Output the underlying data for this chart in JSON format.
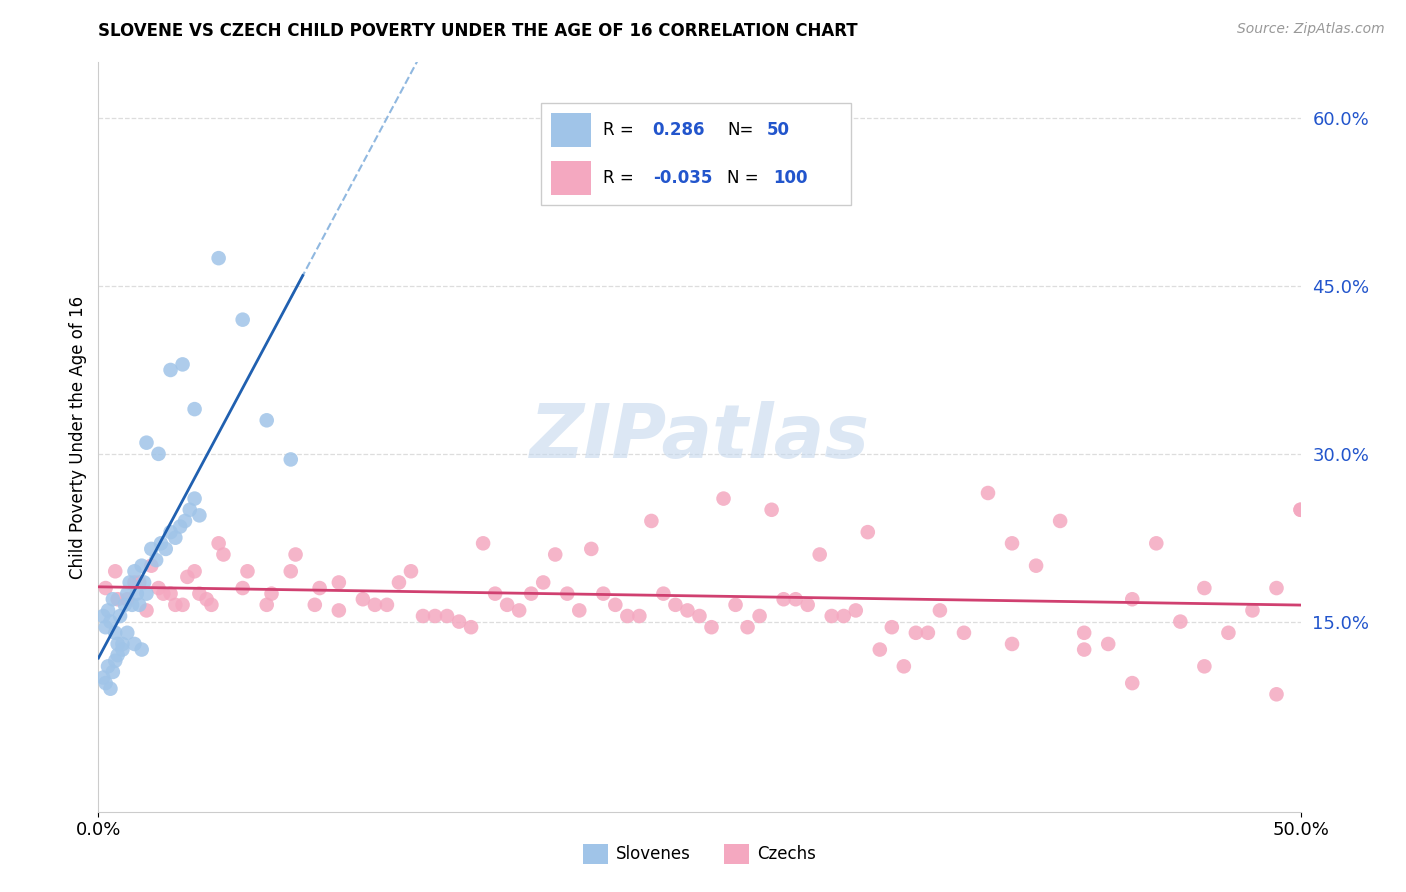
{
  "title": "SLOVENE VS CZECH CHILD POVERTY UNDER THE AGE OF 16 CORRELATION CHART",
  "source": "Source: ZipAtlas.com",
  "ylabel": "Child Poverty Under the Age of 16",
  "xlim": [
    0.0,
    0.5
  ],
  "ylim": [
    -0.02,
    0.65
  ],
  "yticks": [
    0.15,
    0.3,
    0.45,
    0.6
  ],
  "ytick_labels": [
    "15.0%",
    "30.0%",
    "45.0%",
    "60.0%"
  ],
  "xticks": [
    0.0,
    0.5
  ],
  "xtick_labels": [
    "0.0%",
    "50.0%"
  ],
  "R_slovene": 0.286,
  "N_slovene": 50,
  "R_czech": -0.035,
  "N_czech": 100,
  "slovene_color": "#A0C4E8",
  "czech_color": "#F4A8C0",
  "slovene_line_color": "#2060B0",
  "czech_line_color": "#D04070",
  "dash_line_color": "#90B8E0",
  "grid_color": "#DDDDDD",
  "watermark": "ZIPatlas",
  "watermark_color": "#C5D8EE",
  "background_color": "#FFFFFF",
  "legend_value_color": "#2255CC",
  "slovene_x": [
    0.002,
    0.003,
    0.004,
    0.005,
    0.006,
    0.007,
    0.008,
    0.009,
    0.01,
    0.011,
    0.012,
    0.013,
    0.014,
    0.015,
    0.016,
    0.017,
    0.018,
    0.019,
    0.02,
    0.022,
    0.024,
    0.026,
    0.028,
    0.03,
    0.032,
    0.034,
    0.036,
    0.038,
    0.04,
    0.042,
    0.002,
    0.003,
    0.004,
    0.005,
    0.006,
    0.007,
    0.008,
    0.01,
    0.012,
    0.015,
    0.018,
    0.02,
    0.025,
    0.03,
    0.035,
    0.04,
    0.05,
    0.06,
    0.07,
    0.08
  ],
  "slovene_y": [
    0.155,
    0.145,
    0.16,
    0.15,
    0.17,
    0.14,
    0.13,
    0.155,
    0.125,
    0.165,
    0.175,
    0.185,
    0.165,
    0.195,
    0.175,
    0.165,
    0.2,
    0.185,
    0.175,
    0.215,
    0.205,
    0.22,
    0.215,
    0.23,
    0.225,
    0.235,
    0.24,
    0.25,
    0.26,
    0.245,
    0.1,
    0.095,
    0.11,
    0.09,
    0.105,
    0.115,
    0.12,
    0.13,
    0.14,
    0.13,
    0.125,
    0.31,
    0.3,
    0.375,
    0.38,
    0.34,
    0.475,
    0.42,
    0.33,
    0.295
  ],
  "czech_x": [
    0.003,
    0.007,
    0.012,
    0.017,
    0.022,
    0.027,
    0.032,
    0.037,
    0.042,
    0.047,
    0.052,
    0.062,
    0.072,
    0.082,
    0.092,
    0.1,
    0.11,
    0.12,
    0.13,
    0.14,
    0.15,
    0.16,
    0.17,
    0.18,
    0.19,
    0.2,
    0.21,
    0.22,
    0.23,
    0.24,
    0.25,
    0.26,
    0.27,
    0.28,
    0.29,
    0.3,
    0.31,
    0.32,
    0.33,
    0.34,
    0.35,
    0.36,
    0.37,
    0.38,
    0.39,
    0.4,
    0.41,
    0.42,
    0.43,
    0.44,
    0.45,
    0.46,
    0.47,
    0.48,
    0.49,
    0.5,
    0.008,
    0.015,
    0.02,
    0.025,
    0.03,
    0.035,
    0.04,
    0.045,
    0.05,
    0.06,
    0.07,
    0.08,
    0.09,
    0.1,
    0.115,
    0.125,
    0.135,
    0.145,
    0.155,
    0.165,
    0.175,
    0.185,
    0.195,
    0.205,
    0.215,
    0.225,
    0.235,
    0.245,
    0.255,
    0.265,
    0.275,
    0.285,
    0.295,
    0.305,
    0.315,
    0.325,
    0.335,
    0.345,
    0.38,
    0.41,
    0.43,
    0.46,
    0.49,
    0.5
  ],
  "czech_y": [
    0.18,
    0.195,
    0.17,
    0.185,
    0.2,
    0.175,
    0.165,
    0.19,
    0.175,
    0.165,
    0.21,
    0.195,
    0.175,
    0.21,
    0.18,
    0.185,
    0.17,
    0.165,
    0.195,
    0.155,
    0.15,
    0.22,
    0.165,
    0.175,
    0.21,
    0.16,
    0.175,
    0.155,
    0.24,
    0.165,
    0.155,
    0.26,
    0.145,
    0.25,
    0.17,
    0.21,
    0.155,
    0.23,
    0.145,
    0.14,
    0.16,
    0.14,
    0.265,
    0.22,
    0.2,
    0.24,
    0.14,
    0.13,
    0.17,
    0.22,
    0.15,
    0.18,
    0.14,
    0.16,
    0.18,
    0.25,
    0.17,
    0.185,
    0.16,
    0.18,
    0.175,
    0.165,
    0.195,
    0.17,
    0.22,
    0.18,
    0.165,
    0.195,
    0.165,
    0.16,
    0.165,
    0.185,
    0.155,
    0.155,
    0.145,
    0.175,
    0.16,
    0.185,
    0.175,
    0.215,
    0.165,
    0.155,
    0.175,
    0.16,
    0.145,
    0.165,
    0.155,
    0.17,
    0.165,
    0.155,
    0.16,
    0.125,
    0.11,
    0.14,
    0.13,
    0.125,
    0.095,
    0.11,
    0.085,
    0.25
  ]
}
